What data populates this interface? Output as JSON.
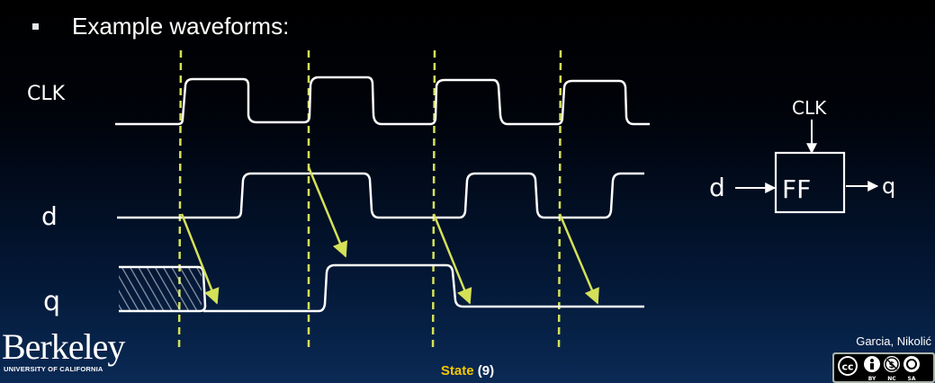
{
  "slide": {
    "bullet_text": "Example waveforms:",
    "footer_title": "State",
    "footer_page": "(9)",
    "author": "Garcia, Nikolić",
    "logo_text": "Berkeley",
    "logo_subtext": "UNIVERSITY OF CALIFORNIA",
    "license_labels": [
      "BY",
      "NC",
      "SA"
    ]
  },
  "waveforms": {
    "signals": [
      "CLK",
      "d",
      "q"
    ],
    "clk_edges_marked": 4
  },
  "flip_flop": {
    "box_label": "FF",
    "clock_input": "CLK",
    "data_input": "d",
    "output": "q"
  },
  "colors": {
    "waveform": "#ffffff",
    "clock_marker": "#d4e157",
    "footer_accent": "#f6c700"
  }
}
